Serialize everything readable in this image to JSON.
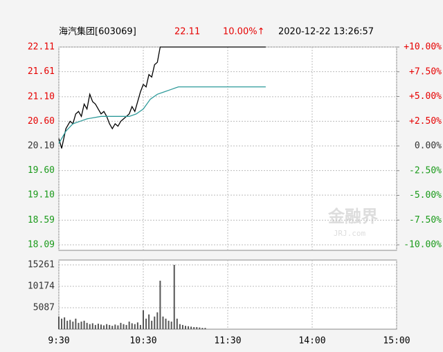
{
  "chart_data": [
    {
      "type": "line",
      "title": "海汽集团[603069]",
      "price_label": "22.11",
      "change_label": "10.00%↑",
      "timestamp": "2020-12-22  13:26:57",
      "xlim": [
        0,
        240
      ],
      "ylim": [
        18.09,
        22.11
      ],
      "yticks": [
        22.11,
        21.61,
        {
          "value": 21.1,
          "label": "21.10"
        },
        {
          "value": 20.6,
          "label": "20.60"
        },
        {
          "value": 20.1,
          "label": "20.10"
        },
        {
          "value": 19.6,
          "label": "19.60"
        },
        {
          "value": 19.1,
          "label": "19.10"
        },
        18.59,
        18.09
      ],
      "y2lim": [
        -10,
        10
      ],
      "y2ticks": [
        {
          "value": 10,
          "label": "+10.00%"
        },
        {
          "value": 7.5,
          "label": "+7.50%"
        },
        {
          "value": 5,
          "label": "+5.00%"
        },
        {
          "value": 2.5,
          "label": "+2.50%"
        },
        {
          "value": 0,
          "label": "0.00%"
        },
        {
          "value": -2.5,
          "label": "-2.50%"
        },
        {
          "value": -5,
          "label": "-5.00%"
        },
        {
          "value": -7.5,
          "label": "-7.50%"
        },
        {
          "value": -10,
          "label": "-10.00%"
        }
      ],
      "up_color": "#e60000",
      "down_color": "#1a9a1a",
      "flat_color": "#333333",
      "series": [
        {
          "color": "#000000",
          "x": [
            0,
            2,
            5,
            8,
            10,
            12,
            14,
            16,
            18,
            20,
            22,
            24,
            26,
            28,
            30,
            32,
            34,
            36,
            38,
            40,
            42,
            44,
            46,
            48,
            50,
            52,
            54,
            56,
            58,
            60,
            62,
            64,
            66,
            68,
            70,
            72,
            147
          ],
          "values": [
            20.25,
            20.05,
            20.45,
            20.6,
            20.55,
            20.75,
            20.8,
            20.7,
            20.95,
            20.85,
            21.15,
            21.0,
            20.95,
            20.85,
            20.75,
            20.8,
            20.7,
            20.55,
            20.45,
            20.55,
            20.5,
            20.6,
            20.65,
            20.7,
            20.75,
            20.9,
            20.8,
            21.0,
            21.2,
            21.35,
            21.3,
            21.55,
            21.5,
            21.75,
            21.8,
            22.11,
            22.11
          ]
        },
        {
          "color": "#2e9a9a",
          "x": [
            0,
            5,
            10,
            15,
            20,
            30,
            40,
            50,
            55,
            60,
            65,
            70,
            75,
            80,
            85,
            90,
            147
          ],
          "values": [
            20.15,
            20.4,
            20.55,
            20.6,
            20.65,
            20.7,
            20.7,
            20.7,
            20.75,
            20.85,
            21.05,
            21.15,
            21.2,
            21.25,
            21.3,
            21.3,
            21.3
          ]
        }
      ]
    },
    {
      "type": "bar",
      "xlim": [
        0,
        240
      ],
      "xticks": [
        {
          "value": 0,
          "label": "9:30"
        },
        {
          "value": 60,
          "label": "10:30"
        },
        {
          "value": 120,
          "label": "11:30"
        },
        {
          "value": 180,
          "label": "14:00"
        },
        {
          "value": 240,
          "label": "15:00"
        }
      ],
      "ylim": [
        0,
        15261
      ],
      "yticks": [
        15261,
        10174,
        5087
      ],
      "color": "#555555",
      "x": [
        0,
        2,
        4,
        6,
        8,
        10,
        12,
        14,
        16,
        18,
        20,
        22,
        24,
        26,
        28,
        30,
        32,
        34,
        36,
        38,
        40,
        42,
        44,
        46,
        48,
        50,
        52,
        54,
        56,
        58,
        60,
        62,
        64,
        66,
        68,
        70,
        72,
        74,
        76,
        78,
        80,
        82,
        84,
        86,
        88,
        90,
        92,
        94,
        96,
        98,
        100,
        102,
        104
      ],
      "values": [
        3000,
        2500,
        2800,
        2000,
        2200,
        1800,
        2500,
        1500,
        1800,
        2000,
        1500,
        1200,
        1400,
        1000,
        1300,
        1100,
        900,
        1200,
        1000,
        800,
        1100,
        900,
        1500,
        1200,
        1000,
        1800,
        1400,
        1200,
        1600,
        1000,
        4500,
        2500,
        3500,
        2000,
        3000,
        4000,
        11500,
        3000,
        2500,
        2000,
        1800,
        15261,
        2500,
        1200,
        1000,
        800,
        700,
        600,
        500,
        500,
        400,
        300,
        300
      ]
    }
  ],
  "watermark": {
    "name": "金融界",
    "site": "JRJ.com"
  }
}
